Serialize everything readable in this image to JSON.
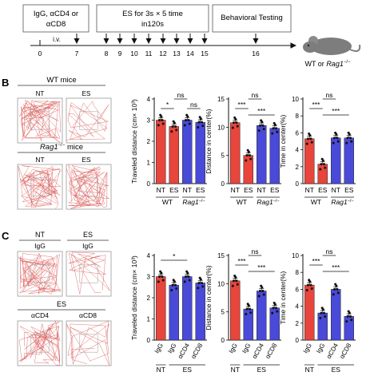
{
  "timeline": {
    "box_treatment": [
      "IgG, αCD4 or",
      "αCD8"
    ],
    "box_es": [
      "ES for 3s × 5 time",
      "in120s"
    ],
    "box_behavior": "Behavioral Testing",
    "iv_label": "i.v.",
    "days": [
      "0",
      "7",
      "8",
      "9",
      "10",
      "11",
      "12",
      "13",
      "14",
      "15",
      "16"
    ],
    "mouse_label_prefix": "WT or ",
    "mouse_label_gene": "Rag1",
    "mouse_label_sup": "−/−"
  },
  "panel_b": {
    "letter": "B",
    "wt_title": "WT mice",
    "rag_title_gene": "Rag1",
    "rag_title_sup": "−/−",
    "rag_title_suffix": " mice",
    "nt": "NT",
    "es": "ES",
    "group_wt": "WT",
    "group_rag_gene": "Rag1",
    "group_rag_sup": "−/−"
  },
  "panel_c": {
    "letter": "C",
    "nt": "NT",
    "es": "ES",
    "igg": "IgG",
    "acd4": "αCD4",
    "acd8": "αCD8"
  },
  "colors": {
    "red": "#e8453c",
    "blue": "#4a4ad8",
    "track": "#d9534f"
  },
  "chart_data": [
    {
      "id": "b1",
      "type": "bar",
      "ylabel": "Traveled distance (cm× 10³)",
      "ylim": [
        0,
        4
      ],
      "yticks": [
        "0",
        "1",
        "2",
        "3",
        "4"
      ],
      "categories": [
        "NT",
        "ES",
        "NT",
        "ES"
      ],
      "values": [
        3.0,
        2.7,
        3.0,
        2.9
      ],
      "annotations": [
        "*",
        "ns",
        "ns"
      ]
    },
    {
      "id": "b2",
      "type": "bar",
      "ylabel": "Distance in center(%)",
      "ylim": [
        0,
        15
      ],
      "yticks": [
        "0",
        "5",
        "10",
        "15"
      ],
      "categories": [
        "NT",
        "ES",
        "NT",
        "ES"
      ],
      "values": [
        10.8,
        5.0,
        10.3,
        9.8
      ],
      "annotations": [
        "***",
        "ns",
        "***"
      ]
    },
    {
      "id": "b3",
      "type": "bar",
      "ylabel": "Time in center(%)",
      "ylim": [
        0,
        10
      ],
      "yticks": [
        "0",
        "2",
        "4",
        "6",
        "8",
        "10"
      ],
      "categories": [
        "NT",
        "ES",
        "NT",
        "ES"
      ],
      "values": [
        5.3,
        2.3,
        5.4,
        5.4
      ],
      "annotations": [
        "***",
        "ns",
        "***"
      ]
    },
    {
      "id": "c1",
      "type": "bar",
      "ylabel": "Traveled distance (cm× 10³)",
      "ylim": [
        0,
        4
      ],
      "yticks": [
        "0",
        "1",
        "2",
        "3",
        "4"
      ],
      "categories": [
        "IgG",
        "IgG",
        "αCD4",
        "αCD8"
      ],
      "values": [
        3.0,
        2.6,
        3.0,
        2.7
      ],
      "annotations": [
        "*"
      ]
    },
    {
      "id": "c2",
      "type": "bar",
      "ylabel": "Distance in center(%)",
      "ylim": [
        0,
        15
      ],
      "yticks": [
        "0",
        "5",
        "10",
        "15"
      ],
      "categories": [
        "IgG",
        "IgG",
        "αCD4",
        "αCD8"
      ],
      "values": [
        10.5,
        5.5,
        8.7,
        5.7
      ],
      "annotations": [
        "***",
        "ns",
        "***"
      ]
    },
    {
      "id": "c3",
      "type": "bar",
      "ylabel": "Time in center(%)",
      "ylim": [
        0,
        10
      ],
      "yticks": [
        "0",
        "2",
        "4",
        "6",
        "8",
        "10"
      ],
      "categories": [
        "IgG",
        "IgG",
        "αCD4",
        "αCD8"
      ],
      "values": [
        6.5,
        3.2,
        6.0,
        2.8
      ],
      "annotations": [
        "***",
        "ns",
        "***"
      ]
    }
  ]
}
